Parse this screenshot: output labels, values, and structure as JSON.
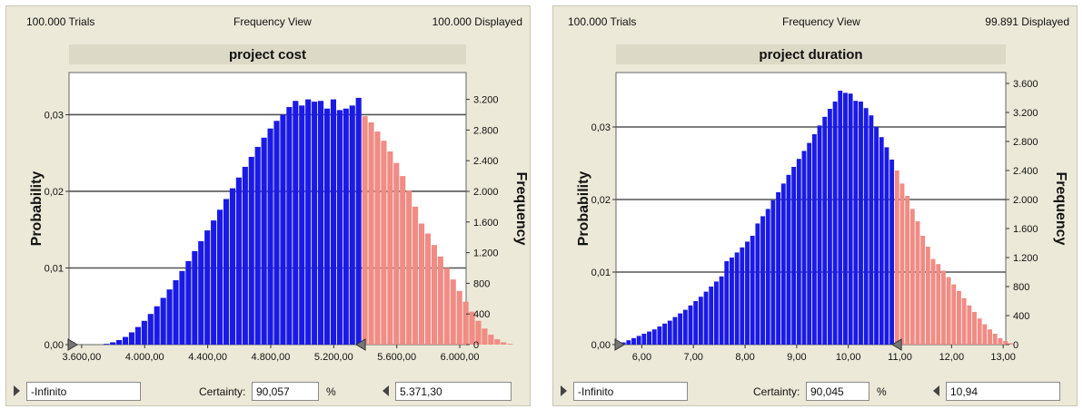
{
  "panels": [
    {
      "header": {
        "trials": "100.000 Trials",
        "view": "Frequency View",
        "displayed": "100.000 Displayed"
      },
      "footer": {
        "lower": "-Infinito",
        "certainty_label": "Certainty:",
        "certainty": "90,057",
        "percent": "%",
        "upper": "5.371,30"
      }
    },
    {
      "header": {
        "trials": "100.000 Trials",
        "view": "Frequency View",
        "displayed": "99.891 Displayed"
      },
      "footer": {
        "lower": "-Infinito",
        "certainty_label": "Certainty:",
        "certainty": "90,045",
        "percent": "%",
        "upper": "10,94"
      }
    }
  ],
  "colors": {
    "in_range": "#1a1ae6",
    "out_range": "#f08c84",
    "plot_bg": "#ffffff",
    "panel_bg": "#ece9d8",
    "grid": "#555555"
  },
  "chart_data": [
    {
      "type": "bar",
      "title": "project cost",
      "xlabel": "",
      "ylabel": "Probability",
      "y2label": "Frequency",
      "xlim": [
        3520,
        6040
      ],
      "ylim": [
        0,
        0.0355
      ],
      "y2lim": [
        0,
        3550
      ],
      "xticks": [
        3600,
        4000,
        4400,
        4800,
        5200,
        5600,
        6000
      ],
      "xtick_labels": [
        "3.600,00",
        "4.000,00",
        "4.400,00",
        "4.800,00",
        "5.200,00",
        "5.600,00",
        "6.000,00"
      ],
      "yticks": [
        0,
        0.01,
        0.02,
        0.03
      ],
      "ytick_labels": [
        "0,00",
        "0,01",
        "0,02",
        "0,03"
      ],
      "y2ticks": [
        0,
        400,
        800,
        1200,
        1600,
        2000,
        2400,
        2800,
        3200
      ],
      "y2tick_labels": [
        "0",
        "400",
        "800",
        "1.200",
        "1.600",
        "2.000",
        "2.400",
        "2.800",
        "3.200"
      ],
      "grid": true,
      "bin_start": 3740,
      "bin_width": 40,
      "threshold": 5371.3,
      "values": [
        0.0001,
        0.0003,
        0.0006,
        0.001,
        0.0016,
        0.0023,
        0.0031,
        0.004,
        0.005,
        0.0061,
        0.0072,
        0.0084,
        0.0096,
        0.0109,
        0.0122,
        0.0135,
        0.0149,
        0.0162,
        0.0176,
        0.019,
        0.0204,
        0.0218,
        0.0232,
        0.0245,
        0.0258,
        0.027,
        0.0282,
        0.0292,
        0.03,
        0.031,
        0.0318,
        0.0312,
        0.032,
        0.0317,
        0.0318,
        0.0308,
        0.032,
        0.0306,
        0.0308,
        0.0312,
        0.0322,
        0.0298,
        0.029,
        0.0278,
        0.0266,
        0.0252,
        0.0237,
        0.022,
        0.0201,
        0.018,
        0.0158,
        0.0145,
        0.013,
        0.0115,
        0.01,
        0.0085,
        0.007,
        0.0056,
        0.0043,
        0.0031,
        0.0021,
        0.0013,
        0.0007,
        0.0003,
        0.0001
      ]
    },
    {
      "type": "bar",
      "title": "project duration",
      "xlabel": "",
      "ylabel": "Probability",
      "y2label": "Frequency",
      "xlim": [
        5.5,
        13.05
      ],
      "ylim": [
        0,
        0.0375
      ],
      "y2lim": [
        0,
        3750
      ],
      "xticks": [
        6,
        7,
        8,
        9,
        10,
        11,
        12,
        13
      ],
      "xtick_labels": [
        "6,00",
        "7,00",
        "8,00",
        "9,00",
        "10,00",
        "11,00",
        "12,00",
        "13,00"
      ],
      "yticks": [
        0,
        0.01,
        0.02,
        0.03
      ],
      "ytick_labels": [
        "0,00",
        "0,01",
        "0,02",
        "0,03"
      ],
      "y2ticks": [
        0,
        400,
        800,
        1200,
        1600,
        2000,
        2400,
        2800,
        3200,
        3600
      ],
      "y2tick_labels": [
        "0",
        "400",
        "800",
        "1.200",
        "1.600",
        "2.000",
        "2.400",
        "2.800",
        "3.200",
        "3.600"
      ],
      "grid": true,
      "bin_start": 5.6,
      "bin_width": 0.1,
      "threshold": 10.94,
      "values": [
        0.0003,
        0.0006,
        0.0009,
        0.0012,
        0.0015,
        0.0018,
        0.0021,
        0.0025,
        0.0029,
        0.0033,
        0.0038,
        0.0043,
        0.0048,
        0.0054,
        0.006,
        0.0066,
        0.0073,
        0.008,
        0.0087,
        0.0094,
        0.0115,
        0.012,
        0.0127,
        0.0134,
        0.0142,
        0.015,
        0.0167,
        0.0177,
        0.0187,
        0.0199,
        0.021,
        0.0222,
        0.0234,
        0.0245,
        0.0256,
        0.0267,
        0.0278,
        0.029,
        0.0302,
        0.0314,
        0.0325,
        0.0335,
        0.035,
        0.0347,
        0.0346,
        0.0336,
        0.0335,
        0.0326,
        0.0316,
        0.03,
        0.0286,
        0.0272,
        0.0255,
        0.024,
        0.0222,
        0.0205,
        0.0187,
        0.017,
        0.015,
        0.0135,
        0.0118,
        0.0111,
        0.0102,
        0.0093,
        0.0083,
        0.0074,
        0.0064,
        0.0054,
        0.0045,
        0.0036,
        0.0028,
        0.0021,
        0.0015,
        0.0009,
        0.0005,
        0.0002
      ]
    }
  ]
}
